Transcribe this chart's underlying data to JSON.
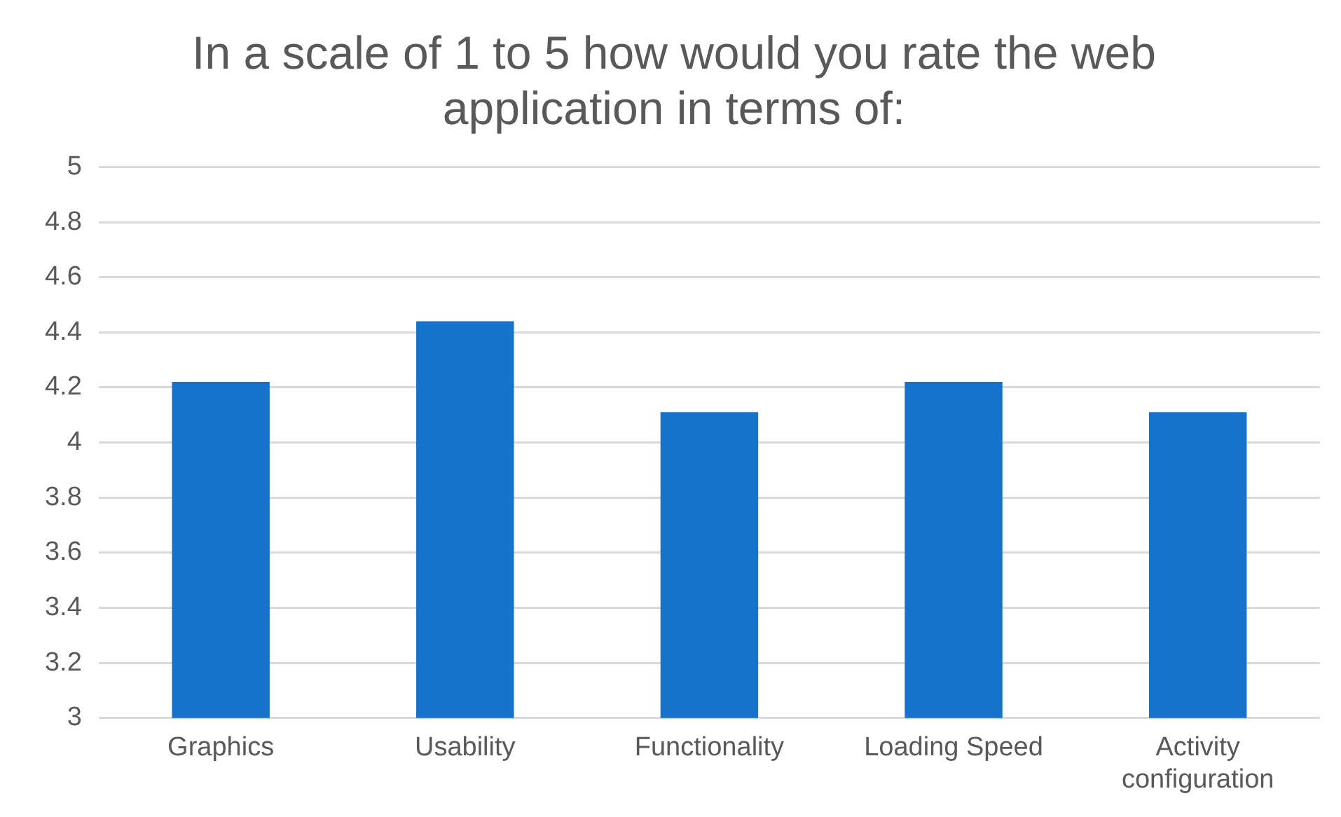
{
  "chart_data": {
    "type": "bar",
    "title": "In a scale of 1 to 5 how would you rate the web application in terms of:",
    "categories": [
      "Graphics",
      "Usability",
      "Functionality",
      "Loading Speed",
      "Activity configuration"
    ],
    "values": [
      4.22,
      4.44,
      4.11,
      4.22,
      4.11
    ],
    "color": "#1772cc",
    "ylim": [
      3,
      5
    ],
    "yticks": [
      3,
      3.2,
      3.4,
      3.6,
      3.8,
      4,
      4.2,
      4.4,
      4.6,
      4.8,
      5
    ],
    "grid": "y"
  }
}
